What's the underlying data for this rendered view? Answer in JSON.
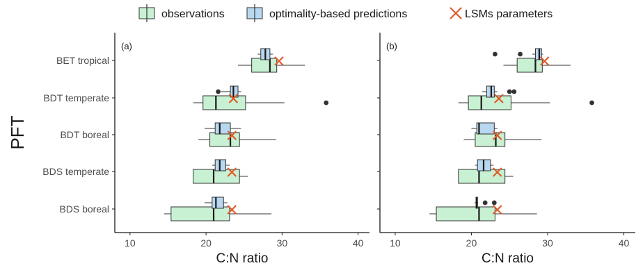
{
  "chart_data": [
    {
      "type": "boxplot",
      "panel_label": "(a)",
      "xlabel": "C:N ratio",
      "ylabel": "PFT",
      "xlim": [
        8,
        41.5
      ],
      "x_ticks": [
        10,
        20,
        30,
        40
      ],
      "categories": [
        "BET tropical",
        "BDT temperate",
        "BDT boreal",
        "BDS temperate",
        "BDS boreal"
      ],
      "series": [
        {
          "name": "observations",
          "color": "#c8f0d2",
          "boxes": [
            {
              "category": "BET tropical",
              "whisker_low": 24.2,
              "q1": 26.0,
              "median": 28.4,
              "q3": 29.3,
              "whisker_high": 33.0,
              "outliers": []
            },
            {
              "category": "BDT temperate",
              "whisker_low": 18.3,
              "q1": 19.6,
              "median": 21.3,
              "q3": 25.2,
              "whisker_high": 30.3,
              "outliers": [
                35.8
              ]
            },
            {
              "category": "BDT boreal",
              "whisker_low": 19.0,
              "q1": 20.5,
              "median": 23.2,
              "q3": 24.4,
              "whisker_high": 29.2,
              "outliers": []
            },
            {
              "category": "BDS temperate",
              "whisker_low": 18.3,
              "q1": 18.3,
              "median": 21.0,
              "q3": 24.4,
              "whisker_high": 25.5,
              "outliers": []
            },
            {
              "category": "BDS boreal",
              "whisker_low": 14.5,
              "q1": 15.4,
              "median": 21.0,
              "q3": 23.1,
              "whisker_high": 28.6,
              "outliers": []
            }
          ]
        },
        {
          "name": "optimality-based predictions",
          "color": "#b8d8f0",
          "boxes": [
            {
              "category": "BET tropical",
              "whisker_low": 26.8,
              "q1": 27.2,
              "median": 27.8,
              "q3": 28.4,
              "whisker_high": 28.8,
              "outliers": []
            },
            {
              "category": "BDT temperate",
              "whisker_low": 22.0,
              "q1": 23.2,
              "median": 23.6,
              "q3": 24.2,
              "whisker_high": 24.6,
              "outliers": [
                21.6
              ]
            },
            {
              "category": "BDT boreal",
              "whisker_low": 19.8,
              "q1": 21.2,
              "median": 21.8,
              "q3": 23.2,
              "whisker_high": 24.6,
              "outliers": []
            },
            {
              "category": "BDS temperate",
              "whisker_low": 20.8,
              "q1": 21.2,
              "median": 21.8,
              "q3": 22.6,
              "whisker_high": 23.1,
              "outliers": []
            },
            {
              "category": "BDS boreal",
              "whisker_low": 19.8,
              "q1": 20.8,
              "median": 21.3,
              "q3": 22.3,
              "whisker_high": 22.8,
              "outliers": []
            }
          ]
        },
        {
          "name": "LSMs parameters",
          "color": "#e05a2a",
          "values": [
            29.6,
            23.6,
            23.4,
            23.4,
            23.4
          ]
        }
      ]
    },
    {
      "type": "boxplot",
      "panel_label": "(b)",
      "xlabel": "C:N ratio",
      "xlim": [
        8,
        41.5
      ],
      "x_ticks": [
        10,
        20,
        30,
        40
      ],
      "categories": [
        "BET tropical",
        "BDT temperate",
        "BDT boreal",
        "BDS temperate",
        "BDS boreal"
      ],
      "series": [
        {
          "name": "observations",
          "color": "#c8f0d2",
          "boxes": [
            {
              "category": "BET tropical",
              "whisker_low": 24.2,
              "q1": 26.0,
              "median": 28.4,
              "q3": 29.3,
              "whisker_high": 33.0,
              "outliers": []
            },
            {
              "category": "BDT temperate",
              "whisker_low": 18.3,
              "q1": 19.6,
              "median": 21.3,
              "q3": 25.2,
              "whisker_high": 30.3,
              "outliers": [
                35.8
              ]
            },
            {
              "category": "BDT boreal",
              "whisker_low": 19.0,
              "q1": 20.5,
              "median": 23.2,
              "q3": 24.4,
              "whisker_high": 29.2,
              "outliers": []
            },
            {
              "category": "BDS temperate",
              "whisker_low": 18.3,
              "q1": 18.3,
              "median": 21.0,
              "q3": 24.4,
              "whisker_high": 25.5,
              "outliers": []
            },
            {
              "category": "BDS boreal",
              "whisker_low": 14.5,
              "q1": 15.4,
              "median": 21.0,
              "q3": 23.1,
              "whisker_high": 28.6,
              "outliers": []
            }
          ]
        },
        {
          "name": "optimality-based predictions",
          "color": "#b8d8f0",
          "boxes": [
            {
              "category": "BET tropical",
              "whisker_low": 28.0,
              "q1": 28.4,
              "median": 28.9,
              "q3": 29.2,
              "whisker_high": 29.4,
              "outliers": [
                23.1,
                26.4
              ]
            },
            {
              "category": "BDT temperate",
              "whisker_low": 21.4,
              "q1": 22.0,
              "median": 22.6,
              "q3": 23.0,
              "whisker_high": 23.4,
              "outliers": [
                25.0,
                25.6
              ]
            },
            {
              "category": "BDT boreal",
              "whisker_low": 20.0,
              "q1": 20.7,
              "median": 21.0,
              "q3": 23.0,
              "whisker_high": 23.4,
              "outliers": []
            },
            {
              "category": "BDS temperate",
              "whisker_low": 20.5,
              "q1": 20.8,
              "median": 21.6,
              "q3": 22.5,
              "whisker_high": 22.9,
              "outliers": []
            },
            {
              "category": "BDS boreal",
              "whisker_low": 20.4,
              "q1": 20.6,
              "median": 20.7,
              "q3": 20.8,
              "whisker_high": 20.9,
              "outliers": [
                21.8,
                23.0
              ]
            }
          ]
        },
        {
          "name": "LSMs parameters",
          "color": "#e05a2a",
          "values": [
            29.6,
            23.6,
            23.4,
            23.4,
            23.4
          ]
        }
      ]
    }
  ],
  "legend": {
    "placement": "top",
    "items": [
      {
        "label": "observations",
        "kind": "box",
        "color": "#c8f0d2"
      },
      {
        "label": "optimality-based predictions",
        "kind": "box",
        "color": "#b8d8f0"
      },
      {
        "label": "LSMs parameters",
        "kind": "cross",
        "color": "#e05a2a"
      }
    ]
  },
  "colors": {
    "axis": "#1a1a1a",
    "box_stroke": "#333333",
    "outlier": "#333333"
  }
}
